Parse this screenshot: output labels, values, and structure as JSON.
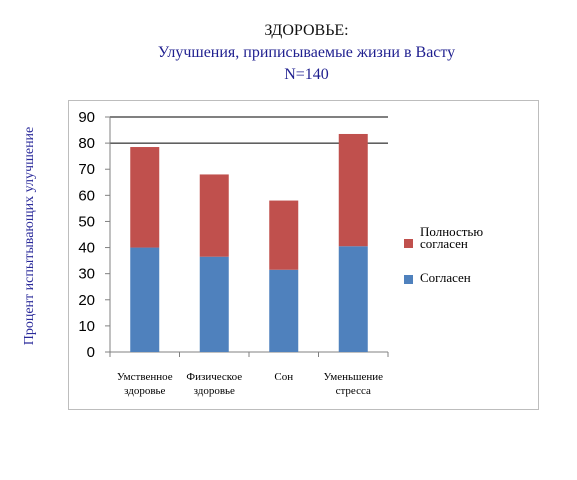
{
  "header": {
    "line1": "ЗДОРОВЬЕ:",
    "line2": "Улучшения, приписываемые жизни в Васту",
    "line3": "N=140"
  },
  "colors": {
    "polnostyu": "#c0504d",
    "soglasen": "#4f81bd",
    "grid": "#000000",
    "axis": "#808080"
  },
  "chart_data": {
    "type": "bar",
    "stacked": true,
    "title": "ЗДОРОВЬЕ: Улучшения, приписываемые жизни в Васту N=140",
    "ylabel": "Процент испытывающих улучшение",
    "xlabel": "",
    "ylim": [
      0,
      90
    ],
    "yticks": [
      0,
      10,
      20,
      30,
      40,
      50,
      60,
      70,
      80,
      90
    ],
    "gridlines_at": [
      80,
      90
    ],
    "categories": [
      [
        "Умственное",
        "здоровье"
      ],
      [
        "Физическое",
        "здоровье"
      ],
      [
        "Сон"
      ],
      [
        "Уменьшение",
        "стресса"
      ]
    ],
    "series": [
      {
        "name": "Согласен",
        "color": "#4f81bd",
        "values": [
          40,
          36.5,
          31.5,
          40.5
        ]
      },
      {
        "name": "Полностью согласен",
        "color": "#c0504d",
        "values": [
          38.5,
          31.5,
          26.5,
          43
        ]
      }
    ],
    "legend_position": "right",
    "legend": [
      {
        "label_line1": "Полностью",
        "label_line2": "согласен",
        "color": "#c0504d"
      },
      {
        "label_line1": "Согласен",
        "label_line2": "",
        "color": "#4f81bd"
      }
    ]
  }
}
